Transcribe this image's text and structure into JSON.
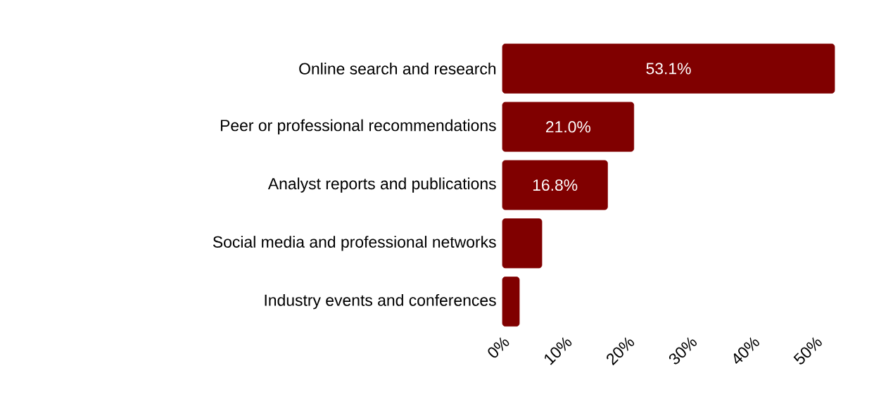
{
  "chart_data": {
    "type": "bar",
    "orientation": "horizontal",
    "categories": [
      "Online search and research",
      "Peer or professional recommendations",
      "Analyst reports and publications",
      "Social media and professional networks",
      "Industry events and conferences"
    ],
    "values": [
      53.1,
      21.0,
      16.8,
      6.3,
      2.7
    ],
    "value_labels": [
      "53.1%",
      "21.0%",
      "16.8%",
      null,
      null
    ],
    "color": "#800000",
    "xlim": [
      0,
      53.1
    ],
    "xticks": [
      {
        "value": 0,
        "label": "0%"
      },
      {
        "value": 10,
        "label": "10%"
      },
      {
        "value": 20,
        "label": "20%"
      },
      {
        "value": 30,
        "label": "30%"
      },
      {
        "value": 40,
        "label": "40%"
      },
      {
        "value": 50,
        "label": "50%"
      }
    ]
  }
}
